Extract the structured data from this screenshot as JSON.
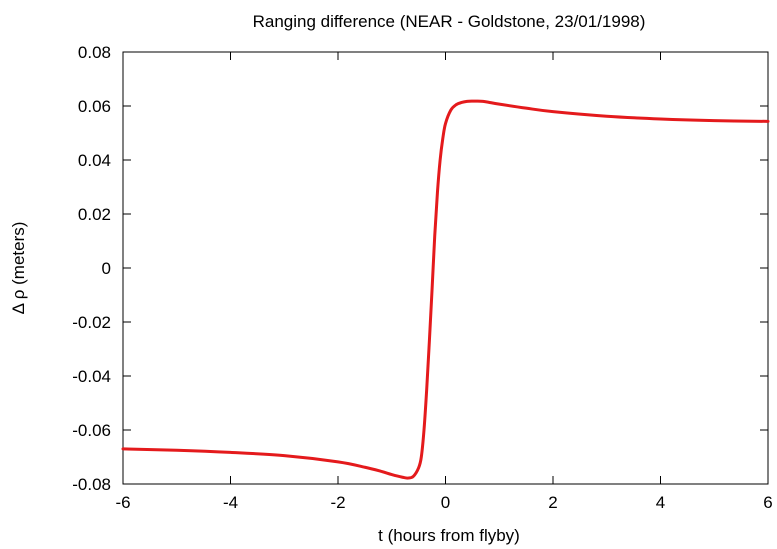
{
  "chart_data": {
    "type": "line",
    "title": "Ranging difference (NEAR - Goldstone, 23/01/1998)",
    "xlabel": "t (hours from flyby)",
    "ylabel": "Δ ρ (meters)",
    "xlim": [
      -6,
      6
    ],
    "ylim": [
      -0.08,
      0.08
    ],
    "xticks": [
      "-6",
      "-4",
      "-2",
      "0",
      "2",
      "4",
      "6"
    ],
    "yticks": [
      "0.08",
      "0.06",
      "0.04",
      "0.02",
      "0",
      "-0.02",
      "-0.04",
      "-0.06",
      "-0.08"
    ],
    "grid": false,
    "line_color": "#e41a1c",
    "series": [
      {
        "x": [
          -6,
          -5,
          -4,
          -3,
          -2,
          -1.5,
          -1.2,
          -1.0,
          -0.8,
          -0.7,
          -0.6,
          -0.5,
          -0.45,
          -0.4,
          -0.35,
          -0.3,
          -0.25,
          -0.2,
          -0.15,
          -0.1,
          -0.05,
          0.0,
          0.1,
          0.2,
          0.3,
          0.4,
          0.5,
          0.6,
          0.7,
          0.8,
          1.0,
          1.5,
          2,
          3,
          4,
          5,
          6
        ],
        "y": [
          -0.067,
          -0.0675,
          -0.0683,
          -0.0695,
          -0.0718,
          -0.0738,
          -0.0753,
          -0.0765,
          -0.0775,
          -0.0778,
          -0.0772,
          -0.074,
          -0.07,
          -0.06,
          -0.045,
          -0.027,
          -0.008,
          0.012,
          0.028,
          0.04,
          0.048,
          0.0535,
          0.0585,
          0.0605,
          0.0613,
          0.0617,
          0.0618,
          0.0618,
          0.0617,
          0.0614,
          0.0607,
          0.0592,
          0.0579,
          0.0562,
          0.0552,
          0.0546,
          0.0543
        ]
      }
    ]
  }
}
